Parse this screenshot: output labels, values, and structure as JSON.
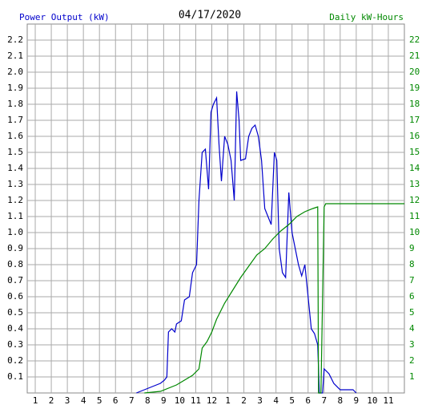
{
  "chart_data": {
    "type": "line",
    "title": "04/17/2020",
    "xlim": [
      0.5,
      24
    ],
    "ylim": [
      0,
      2.3
    ],
    "y2lim": [
      0,
      23
    ],
    "grid": true,
    "xticks": [
      {
        "value": 1,
        "label": "1"
      },
      {
        "value": 2,
        "label": "2"
      },
      {
        "value": 3,
        "label": "3"
      },
      {
        "value": 4,
        "label": "4"
      },
      {
        "value": 5,
        "label": "5"
      },
      {
        "value": 6,
        "label": "6"
      },
      {
        "value": 7,
        "label": "7"
      },
      {
        "value": 8,
        "label": "8"
      },
      {
        "value": 9,
        "label": "9"
      },
      {
        "value": 10,
        "label": "10"
      },
      {
        "value": 11,
        "label": "11"
      },
      {
        "value": 12,
        "label": "12"
      },
      {
        "value": 13,
        "label": "1"
      },
      {
        "value": 14,
        "label": "2"
      },
      {
        "value": 15,
        "label": "3"
      },
      {
        "value": 16,
        "label": "4"
      },
      {
        "value": 17,
        "label": "5"
      },
      {
        "value": 18,
        "label": "6"
      },
      {
        "value": 19,
        "label": "7"
      },
      {
        "value": 20,
        "label": "8"
      },
      {
        "value": 21,
        "label": "9"
      },
      {
        "value": 22,
        "label": "10"
      },
      {
        "value": 23,
        "label": "11"
      }
    ],
    "yticks": [
      0.1,
      0.2,
      0.3,
      0.4,
      0.5,
      0.6,
      0.7,
      0.8,
      0.9,
      {
        "value": 1,
        "label": "1.0"
      },
      1.1,
      1.2,
      1.3,
      1.4,
      1.5,
      1.6,
      1.7,
      1.8,
      1.9,
      {
        "value": 2,
        "label": "2.0"
      },
      2.1,
      2.2
    ],
    "y2ticks": [
      1,
      2,
      3,
      4,
      5,
      6,
      7,
      8,
      9,
      10,
      11,
      12,
      13,
      14,
      15,
      16,
      17,
      18,
      19,
      20,
      21,
      22
    ],
    "series": [
      {
        "name": "Power Output (kW)",
        "color": "#0000cc",
        "x": [
          7.3,
          7.8,
          8.3,
          8.8,
          9.05,
          9.2,
          9.3,
          9.5,
          9.7,
          9.8,
          10.1,
          10.3,
          10.6,
          10.8,
          11.05,
          11.2,
          11.4,
          11.6,
          11.8,
          11.95,
          12.1,
          12.3,
          12.45,
          12.6,
          12.8,
          13.0,
          13.2,
          13.4,
          13.55,
          13.7,
          13.8,
          14.1,
          14.3,
          14.5,
          14.7,
          14.9,
          15.1,
          15.3,
          15.5,
          15.7,
          15.9,
          16.05,
          16.2,
          16.4,
          16.6,
          16.8,
          17.0,
          17.2,
          17.4,
          17.6,
          17.8,
          18.0,
          18.2,
          18.4,
          18.6,
          18.7,
          18.9,
          19.0,
          19.3,
          19.6,
          20.0,
          20.8,
          21.0
        ],
        "values": [
          0,
          0.02,
          0.04,
          0.06,
          0.08,
          0.1,
          0.38,
          0.4,
          0.38,
          0.43,
          0.45,
          0.58,
          0.6,
          0.75,
          0.8,
          1.2,
          1.5,
          1.52,
          1.27,
          1.75,
          1.8,
          1.84,
          1.55,
          1.32,
          1.6,
          1.55,
          1.45,
          1.2,
          1.88,
          1.7,
          1.45,
          1.46,
          1.6,
          1.65,
          1.67,
          1.6,
          1.45,
          1.15,
          1.1,
          1.05,
          1.5,
          1.45,
          0.9,
          0.75,
          0.72,
          1.25,
          1.0,
          0.9,
          0.8,
          0.73,
          0.8,
          0.6,
          0.4,
          0.37,
          0.3,
          0,
          0,
          0.15,
          0.12,
          0.06,
          0.02,
          0.02,
          0
        ]
      },
      {
        "name": "Daily kW-Hours",
        "color": "#008800",
        "axis": "y2",
        "x": [
          7.8,
          8.8,
          9.8,
          10.8,
          11.2,
          11.4,
          11.7,
          12.0,
          12.3,
          12.8,
          13.3,
          13.8,
          14.3,
          14.8,
          15.3,
          15.8,
          16.3,
          16.8,
          17.3,
          17.8,
          18.3,
          18.6,
          18.65,
          18.8,
          19.0,
          19.1,
          24.0
        ],
        "values": [
          0,
          0.1,
          0.5,
          1.1,
          1.5,
          2.8,
          3.2,
          3.8,
          4.6,
          5.6,
          6.4,
          7.2,
          7.9,
          8.6,
          9.0,
          9.6,
          10.1,
          10.5,
          11.0,
          11.3,
          11.5,
          11.6,
          0,
          0,
          11.6,
          11.8,
          11.8
        ]
      }
    ]
  }
}
